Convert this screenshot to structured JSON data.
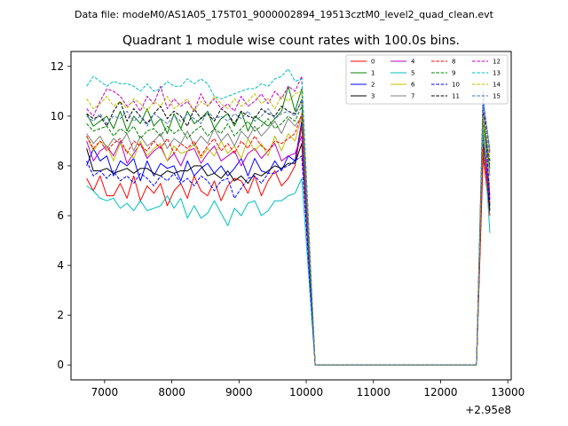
{
  "figure": {
    "suptitle": "Data file: modeM0/AS1A05_175T01_9000002894_19513cztM0_level2_quad_clean.evt"
  },
  "chart_data": {
    "type": "line",
    "title": "Quadrant 1 module wise count rates with 100.0s bins.",
    "xlabel": "",
    "ylabel": "",
    "x_offset_label": "+2.95e8",
    "xlim": [
      6500,
      13050
    ],
    "ylim": [
      -0.6,
      12.6
    ],
    "x_ticks": [
      7000,
      8000,
      9000,
      10000,
      11000,
      12000,
      13000
    ],
    "x_tick_labels": [
      "7000",
      "8000",
      "9000",
      "10000",
      "11000",
      "12000",
      "13000"
    ],
    "y_ticks": [
      0,
      2,
      4,
      6,
      8,
      10,
      12
    ],
    "y_tick_labels": [
      "0",
      "2",
      "4",
      "6",
      "8",
      "10",
      "12"
    ],
    "grid": false,
    "legend_position": "top-right",
    "x": [
      6733,
      6833,
      6933,
      7033,
      7133,
      7233,
      7333,
      7433,
      7533,
      7633,
      7733,
      7833,
      7933,
      8033,
      8133,
      8233,
      8333,
      8433,
      8533,
      8633,
      8733,
      8833,
      8933,
      9033,
      9133,
      9233,
      9333,
      9433,
      9533,
      9633,
      9733,
      9833,
      9933,
      10133,
      10333,
      10533,
      10733,
      10933,
      11133,
      11333,
      11533,
      11733,
      11933,
      12133,
      12333,
      12533,
      12633,
      12733
    ],
    "series": [
      {
        "name": "0",
        "color": "#ff0000",
        "dash": "solid",
        "values": [
          7.5,
          7.0,
          7.6,
          6.8,
          6.8,
          7.3,
          6.7,
          7.6,
          6.6,
          7.2,
          6.9,
          7.3,
          6.4,
          7.0,
          7.3,
          6.7,
          7.6,
          7.0,
          6.8,
          7.4,
          6.6,
          7.2,
          7.5,
          7.4,
          6.9,
          7.6,
          6.8,
          7.4,
          7.8,
          7.2,
          7.5,
          8.0,
          9.6,
          0,
          0,
          0,
          0,
          0,
          0,
          0,
          0,
          0,
          0,
          0,
          0,
          0,
          8.4,
          6.0
        ]
      },
      {
        "name": "1",
        "color": "#008000",
        "dash": "solid",
        "values": [
          10.1,
          9.6,
          9.8,
          10.0,
          9.5,
          10.2,
          9.4,
          10.0,
          9.7,
          10.3,
          9.6,
          9.9,
          9.3,
          10.1,
          9.5,
          10.2,
          9.7,
          9.9,
          10.2,
          9.5,
          9.9,
          10.1,
          9.6,
          10.2,
          9.4,
          10.0,
          9.8,
          9.6,
          9.9,
          10.2,
          11.2,
          10.2,
          11.1,
          0,
          0,
          0,
          0,
          0,
          0,
          0,
          0,
          0,
          0,
          0,
          0,
          0,
          9.5,
          7.9
        ]
      },
      {
        "name": "2",
        "color": "#0000ff",
        "dash": "solid",
        "values": [
          8.0,
          8.7,
          8.2,
          8.4,
          7.6,
          8.2,
          8.0,
          8.3,
          7.4,
          8.2,
          7.6,
          8.1,
          7.9,
          8.0,
          7.4,
          8.2,
          7.6,
          7.9,
          8.1,
          7.7,
          8.0,
          7.6,
          7.9,
          8.3,
          7.6,
          8.3,
          7.8,
          7.7,
          8.2,
          7.8,
          8.4,
          8.2,
          9.8,
          0,
          0,
          0,
          0,
          0,
          0,
          0,
          0,
          0,
          0,
          0,
          0,
          0,
          9.3,
          6.4
        ]
      },
      {
        "name": "3",
        "color": "#000000",
        "dash": "solid",
        "values": [
          8.7,
          7.8,
          7.8,
          7.9,
          7.7,
          7.8,
          7.9,
          7.7,
          7.9,
          7.9,
          7.7,
          7.6,
          7.8,
          7.7,
          7.8,
          7.8,
          8.0,
          8.0,
          7.6,
          7.7,
          7.5,
          7.8,
          7.4,
          7.6,
          7.3,
          7.7,
          7.6,
          7.8,
          8.0,
          7.9,
          8.1,
          8.1,
          8.9,
          0,
          0,
          0,
          0,
          0,
          0,
          0,
          0,
          0,
          0,
          0,
          0,
          0,
          8.9,
          6.2
        ]
      },
      {
        "name": "4",
        "color": "#bf00bf",
        "dash": "solid",
        "values": [
          9.0,
          8.2,
          8.6,
          8.8,
          8.4,
          9.0,
          8.1,
          8.5,
          8.9,
          8.3,
          8.6,
          8.8,
          8.2,
          8.5,
          8.0,
          8.6,
          8.7,
          8.1,
          8.5,
          8.8,
          8.2,
          8.4,
          8.6,
          8.0,
          8.5,
          8.7,
          8.3,
          8.6,
          8.9,
          8.2,
          8.4,
          8.5,
          9.2,
          0,
          0,
          0,
          0,
          0,
          0,
          0,
          0,
          0,
          0,
          0,
          0,
          0,
          9.4,
          6.8
        ]
      },
      {
        "name": "5",
        "color": "#00bfbf",
        "dash": "solid",
        "values": [
          7.2,
          7.0,
          6.7,
          6.6,
          6.7,
          6.3,
          6.5,
          6.2,
          6.6,
          6.2,
          6.3,
          6.4,
          6.8,
          6.3,
          6.7,
          5.9,
          6.4,
          5.9,
          6.1,
          6.6,
          6.1,
          5.6,
          6.3,
          6.0,
          6.5,
          6.6,
          6.0,
          6.2,
          6.6,
          6.6,
          6.8,
          6.9,
          7.5,
          0,
          0,
          0,
          0,
          0,
          0,
          0,
          0,
          0,
          0,
          0,
          0,
          0,
          9.6,
          5.3
        ]
      },
      {
        "name": "6",
        "color": "#bfbf00",
        "dash": "solid",
        "values": [
          9.2,
          8.6,
          9.0,
          8.8,
          8.2,
          8.9,
          8.6,
          8.3,
          9.0,
          8.4,
          8.7,
          8.9,
          8.2,
          8.8,
          8.5,
          8.6,
          8.9,
          8.3,
          8.7,
          8.4,
          9.0,
          8.5,
          8.8,
          8.3,
          9.1,
          8.6,
          8.9,
          8.4,
          9.2,
          8.6,
          9.3,
          9.0,
          10.0,
          0,
          0,
          0,
          0,
          0,
          0,
          0,
          0,
          0,
          0,
          0,
          0,
          0,
          9.9,
          7.1
        ]
      },
      {
        "name": "7",
        "color": "#808080",
        "dash": "solid",
        "values": [
          9.3,
          8.9,
          9.2,
          8.7,
          9.1,
          8.9,
          9.3,
          8.6,
          9.2,
          8.8,
          9.0,
          9.3,
          8.7,
          9.1,
          8.9,
          9.4,
          8.8,
          9.2,
          8.9,
          9.5,
          9.0,
          9.3,
          8.8,
          9.4,
          9.1,
          9.6,
          9.2,
          9.5,
          9.8,
          9.3,
          9.9,
          9.6,
          10.0,
          0,
          0,
          0,
          0,
          0,
          0,
          0,
          0,
          0,
          0,
          0,
          0,
          0,
          10.3,
          7.6
        ]
      },
      {
        "name": "8",
        "color": "#ff0000",
        "dash": "dashed",
        "values": [
          9.2,
          8.7,
          9.0,
          8.6,
          8.9,
          9.1,
          8.5,
          9.0,
          8.8,
          8.6,
          9.0,
          8.7,
          9.1,
          8.5,
          8.9,
          8.7,
          9.0,
          8.4,
          8.8,
          9.1,
          8.6,
          8.9,
          8.5,
          9.0,
          8.7,
          9.2,
          8.8,
          8.6,
          9.0,
          8.9,
          9.1,
          9.3,
          10.1,
          0,
          0,
          0,
          0,
          0,
          0,
          0,
          0,
          0,
          0,
          0,
          0,
          0,
          8.7,
          6.5
        ]
      },
      {
        "name": "9",
        "color": "#008000",
        "dash": "dashed",
        "values": [
          9.7,
          9.4,
          9.5,
          9.6,
          9.2,
          9.5,
          9.3,
          9.6,
          9.1,
          9.4,
          9.5,
          9.2,
          9.6,
          9.3,
          9.5,
          9.1,
          9.4,
          9.6,
          9.2,
          9.5,
          9.3,
          9.7,
          9.2,
          9.5,
          9.8,
          9.4,
          9.6,
          9.9,
          9.5,
          9.7,
          10.0,
          9.8,
          10.4,
          0,
          0,
          0,
          0,
          0,
          0,
          0,
          0,
          0,
          0,
          0,
          0,
          0,
          9.8,
          8.0
        ]
      },
      {
        "name": "10",
        "color": "#0000ff",
        "dash": "dashed",
        "values": [
          8.2,
          7.6,
          7.8,
          7.5,
          7.8,
          7.4,
          7.6,
          7.3,
          7.7,
          7.5,
          7.2,
          7.6,
          7.4,
          7.7,
          7.3,
          7.5,
          7.2,
          7.6,
          7.4,
          7.0,
          7.4,
          7.5,
          6.7,
          7.1,
          7.5,
          7.6,
          7.3,
          7.7,
          7.7,
          7.9,
          8.0,
          8.2,
          8.4,
          0,
          0,
          0,
          0,
          0,
          0,
          0,
          0,
          0,
          0,
          0,
          0,
          0,
          11.0,
          6.6
        ]
      },
      {
        "name": "11",
        "color": "#000000",
        "dash": "dashed",
        "values": [
          10.1,
          9.9,
          10.0,
          9.6,
          10.2,
          10.6,
          9.8,
          10.3,
          10.0,
          9.7,
          10.1,
          10.4,
          9.9,
          10.2,
          10.0,
          9.6,
          10.3,
          9.9,
          10.1,
          9.8,
          10.3,
          10.1,
          9.7,
          10.2,
          10.0,
          9.9,
          10.3,
          10.1,
          10.0,
          10.4,
          10.2,
          10.1,
          10.6,
          0,
          0,
          0,
          0,
          0,
          0,
          0,
          0,
          0,
          0,
          0,
          0,
          0,
          10.1,
          8.2
        ]
      },
      {
        "name": "12",
        "color": "#bf00bf",
        "dash": "dashed",
        "values": [
          10.3,
          10.0,
          10.6,
          11.1,
          11.0,
          10.8,
          10.4,
          10.6,
          10.2,
          10.8,
          10.5,
          11.2,
          10.3,
          10.7,
          10.4,
          10.6,
          10.2,
          10.9,
          10.4,
          10.7,
          10.3,
          10.5,
          10.2,
          10.8,
          10.4,
          10.6,
          10.9,
          10.5,
          11.0,
          10.7,
          11.2,
          11.0,
          11.6,
          0,
          0,
          0,
          0,
          0,
          0,
          0,
          0,
          0,
          0,
          0,
          0,
          0,
          10.5,
          8.5
        ]
      },
      {
        "name": "13",
        "color": "#00bfbf",
        "dash": "dashed",
        "values": [
          11.2,
          11.6,
          11.4,
          11.2,
          11.4,
          11.3,
          11.3,
          11.2,
          11.0,
          11.3,
          11.0,
          11.1,
          11.4,
          11.2,
          11.2,
          11.5,
          11.3,
          11.5,
          11.3,
          10.8,
          10.7,
          10.8,
          10.9,
          11.0,
          11.1,
          11.1,
          11.3,
          11.2,
          11.5,
          11.6,
          11.9,
          11.4,
          11.5,
          0,
          0,
          0,
          0,
          0,
          0,
          0,
          0,
          0,
          0,
          0,
          0,
          0,
          10.6,
          8.7
        ]
      },
      {
        "name": "14",
        "color": "#bfbf00",
        "dash": "dashed",
        "values": [
          10.7,
          10.3,
          10.5,
          10.8,
          10.4,
          10.6,
          10.3,
          10.7,
          10.5,
          10.2,
          10.6,
          10.4,
          10.8,
          10.3,
          10.5,
          10.7,
          10.2,
          10.6,
          10.4,
          10.8,
          10.5,
          10.3,
          10.7,
          10.4,
          10.6,
          10.9,
          10.5,
          10.7,
          10.3,
          10.8,
          10.6,
          10.9,
          11.0,
          0,
          0,
          0,
          0,
          0,
          0,
          0,
          0,
          0,
          0,
          0,
          0,
          0,
          10.0,
          8.3
        ]
      },
      {
        "name": "15",
        "color": "#4c72b0",
        "dash": "dashed",
        "values": [
          10.0,
          9.8,
          10.1,
          9.7,
          10.0,
          9.9,
          10.2,
          9.8,
          10.0,
          9.6,
          10.1,
          9.9,
          9.7,
          10.0,
          9.8,
          10.1,
          9.9,
          9.7,
          10.2,
          9.9,
          10.0,
          9.8,
          10.1,
          9.9,
          10.2,
          9.8,
          10.0,
          10.3,
          9.9,
          10.1,
          10.2,
          10.0,
          10.7,
          0,
          0,
          0,
          0,
          0,
          0,
          0,
          0,
          0,
          0,
          0,
          0,
          0,
          10.7,
          8.6
        ]
      }
    ]
  }
}
